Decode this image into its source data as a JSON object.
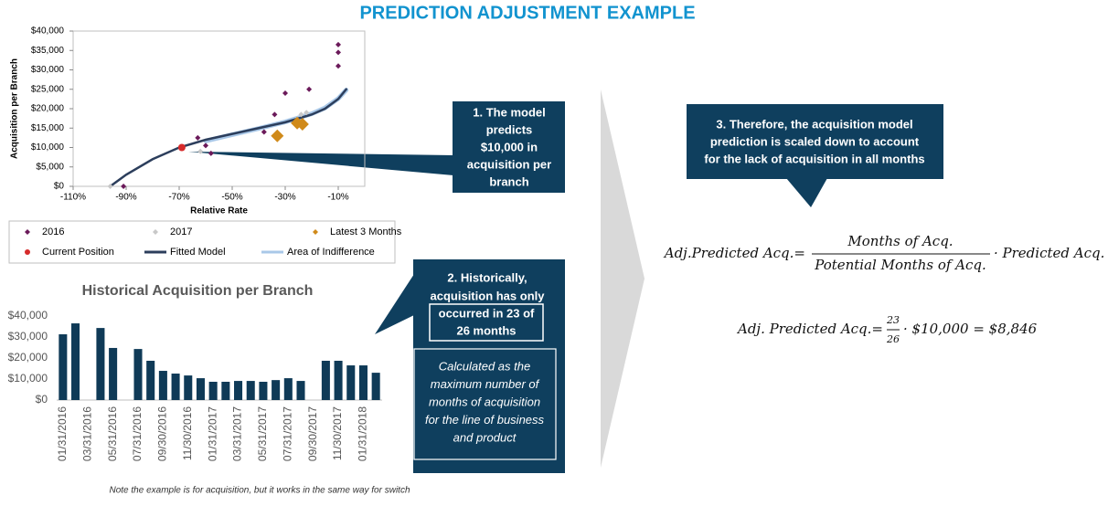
{
  "title": "PREDICTION ADJUSTMENT EXAMPLE",
  "chart_data": [
    {
      "type": "scatter",
      "xlabel": "Relative Rate",
      "ylabel": "Acquisition per Branch",
      "xlim": [
        -110,
        0
      ],
      "xticks": [
        {
          "value": -110,
          "label": "-110%"
        },
        {
          "value": -90,
          "label": "-90%"
        },
        {
          "value": -70,
          "label": "-70%"
        },
        {
          "value": -50,
          "label": "-50%"
        },
        {
          "value": -30,
          "label": "-30%"
        },
        {
          "value": -10,
          "label": "-10%"
        }
      ],
      "ylim": [
        0,
        40000
      ],
      "yticks": [
        {
          "value": 0,
          "label": "$0"
        },
        {
          "value": 5000,
          "label": "$5,000"
        },
        {
          "value": 10000,
          "label": "$10,000"
        },
        {
          "value": 15000,
          "label": "$15,000"
        },
        {
          "value": 20000,
          "label": "$20,000"
        },
        {
          "value": 25000,
          "label": "$25,000"
        },
        {
          "value": 30000,
          "label": "$30,000"
        },
        {
          "value": 35000,
          "label": "$35,000"
        },
        {
          "value": 40000,
          "label": "$40,000"
        }
      ],
      "grid": false,
      "series": [
        {
          "name": "2016",
          "color": "#6b1a5a",
          "marker": "diamond",
          "marker_size": 3,
          "x": [
            -91,
            -63,
            -60,
            -58,
            -38,
            -34,
            -30,
            -21,
            -10,
            -10,
            -10
          ],
          "values": [
            0,
            12500,
            10500,
            8500,
            14000,
            18500,
            24000,
            25000,
            36500,
            34500,
            31000
          ]
        },
        {
          "name": "2017",
          "color": "#c8c8c8",
          "marker": "diamond",
          "marker_size": 3,
          "x": [
            -96,
            -62,
            -24,
            -22
          ],
          "values": [
            0,
            9000,
            18500,
            19000
          ]
        },
        {
          "name": "Latest 3 Months",
          "color": "#d08a1a",
          "marker": "diamond",
          "marker_size": 7,
          "x": [
            -33,
            -25.5,
            -23.5
          ],
          "values": [
            13000,
            16300,
            16000
          ]
        },
        {
          "name": "Current Position",
          "color": "#d62b2b",
          "marker": "circle",
          "marker_size": 4,
          "x": [
            -69
          ],
          "values": [
            10000
          ]
        },
        {
          "name": "Fitted Model",
          "color": "#2c3e5c",
          "marker": "line",
          "x": [
            -96,
            -90,
            -80,
            -70,
            -60,
            -50,
            -40,
            -30,
            -20,
            -15,
            -10,
            -7
          ],
          "values": [
            0,
            3000,
            7000,
            10000,
            12000,
            13500,
            15000,
            16500,
            18500,
            20000,
            22500,
            25000
          ]
        },
        {
          "name": "Area of Indifference",
          "color": "#a9c8e8",
          "marker": "line",
          "x": [
            -60,
            -50,
            -40,
            -30,
            -20,
            -15,
            -10,
            -7
          ],
          "values": [
            11700,
            13300,
            14900,
            16600,
            18700,
            20200,
            22600,
            24800
          ]
        }
      ]
    },
    {
      "type": "bar",
      "title": "Historical Acquisition per Branch",
      "color": "#0f3a57",
      "categories": [
        "01/31/2016",
        null,
        "03/31/2016",
        null,
        "05/31/2016",
        null,
        "07/31/2016",
        null,
        "09/30/2016",
        null,
        "11/30/2016",
        null,
        "01/31/2017",
        null,
        "03/31/2017",
        null,
        "05/31/2017",
        null,
        "07/31/2017",
        null,
        "09/30/2017",
        null,
        "11/30/2017",
        null,
        "01/31/2018",
        null
      ],
      "values": [
        31300,
        36500,
        0,
        34300,
        24800,
        0,
        24300,
        18700,
        13900,
        12600,
        11700,
        10400,
        8700,
        8700,
        9100,
        9100,
        8700,
        9500,
        10400,
        9100,
        0,
        18700,
        18700,
        16500,
        16500,
        13000
      ],
      "ylim": [
        0,
        40000
      ],
      "yticks": [
        {
          "value": 0,
          "label": "$0"
        },
        {
          "value": 10000,
          "label": "$10,000"
        },
        {
          "value": 20000,
          "label": "$20,000"
        },
        {
          "value": 30000,
          "label": "$30,000"
        },
        {
          "value": 40000,
          "label": "$40,000"
        }
      ],
      "grid": false
    }
  ],
  "callouts": [
    {
      "lines": [
        "1. The model",
        "predicts",
        "$10,000 in",
        "acquisition per",
        "branch"
      ]
    },
    {
      "lines": [
        "2. Historically,",
        "acquisition has only"
      ],
      "boxed_lines": [
        "occurred in 23 of",
        "26 months"
      ],
      "detail_lines": [
        "Calculated as the",
        "maximum number of",
        "months of acquisition",
        "for the line of business",
        "and product"
      ]
    },
    {
      "lines": [
        "3. Therefore, the acquisition model",
        "prediction is scaled down to account",
        "for the lack of acquisition in all months"
      ]
    }
  ],
  "formulas": [
    {
      "lhs": "Adj.Predicted Acq.=",
      "numerator": "Months of Acq.",
      "denominator": "Potential Months of Acq.",
      "rhs": "· Predicted Acq."
    },
    {
      "lhs": "Adj. Predicted Acq.=",
      "numerator": "23",
      "denominator": "26",
      "rhs": "· $10,000 = $8,846"
    }
  ],
  "note": "Note the example is for acquisition, but it works in the same way for switch"
}
